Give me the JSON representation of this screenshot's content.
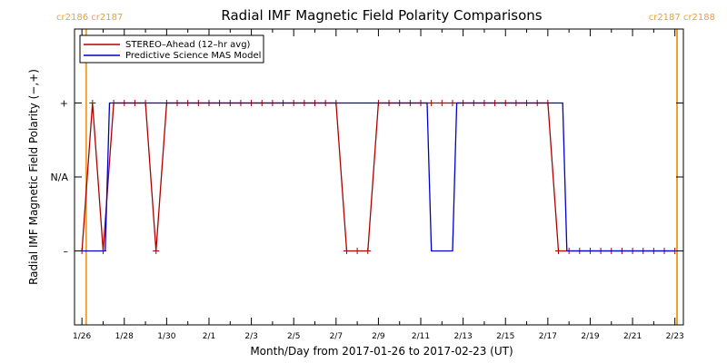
{
  "chart_data": {
    "type": "line",
    "title": "Radial IMF Magnetic Field Polarity Comparisons",
    "xlabel": "Month/Day from 2017-01-26 to 2017-02-23 (UT)",
    "ylabel": "Radial IMF Magnetic Field Polarity (−,+)",
    "xlim": [
      -0.35,
      28.4
    ],
    "ylim": [
      -2,
      2
    ],
    "x_unit": "days after 2017-01-26 00:00 UT",
    "xticks": [
      {
        "x": 0,
        "label": "1/26"
      },
      {
        "x": 2,
        "label": "1/28"
      },
      {
        "x": 4,
        "label": "1/30"
      },
      {
        "x": 6,
        "label": "2/1"
      },
      {
        "x": 8,
        "label": "2/3"
      },
      {
        "x": 10,
        "label": "2/5"
      },
      {
        "x": 12,
        "label": "2/7"
      },
      {
        "x": 14,
        "label": "2/9"
      },
      {
        "x": 16,
        "label": "2/11"
      },
      {
        "x": 18,
        "label": "2/13"
      },
      {
        "x": 20,
        "label": "2/15"
      },
      {
        "x": 22,
        "label": "2/17"
      },
      {
        "x": 24,
        "label": "2/19"
      },
      {
        "x": 26,
        "label": "2/21"
      },
      {
        "x": 28,
        "label": "2/23"
      }
    ],
    "yticks": [
      {
        "y": 1,
        "label": "+"
      },
      {
        "y": 0,
        "label": "N/A"
      },
      {
        "y": -1,
        "label": "–"
      }
    ],
    "series": [
      {
        "name": "STEREO–Ahead (12–hr avg)",
        "color": "#b00000",
        "markers": true,
        "x": [
          0.0,
          0.5,
          1.0,
          1.5,
          2.0,
          2.5,
          3.0,
          3.5,
          4.0,
          4.5,
          5.0,
          5.5,
          6.0,
          6.5,
          7.0,
          7.5,
          8.0,
          8.5,
          9.0,
          9.5,
          10.0,
          10.5,
          11.0,
          11.5,
          12.0,
          12.5,
          13.0,
          13.5,
          14.0,
          14.5,
          15.0,
          15.5,
          16.0,
          16.5,
          17.0,
          17.5,
          18.0,
          18.5,
          19.0,
          19.5,
          20.0,
          20.5,
          21.0,
          21.5,
          22.0,
          22.5,
          23.0,
          23.5,
          24.0,
          24.5,
          25.0,
          25.5,
          26.0,
          26.5,
          27.0,
          27.5,
          28.0
        ],
        "y": [
          -1,
          1,
          -1,
          1,
          1,
          1,
          1,
          -1,
          1,
          1,
          1,
          1,
          1,
          1,
          1,
          1,
          1,
          1,
          1,
          1,
          1,
          1,
          1,
          1,
          1,
          -1,
          -1,
          -1,
          1,
          1,
          1,
          1,
          1,
          1,
          1,
          1,
          1,
          1,
          1,
          1,
          1,
          1,
          1,
          1,
          1,
          -1,
          -1,
          -1,
          -1,
          -1,
          -1,
          -1,
          -1,
          -1,
          -1,
          -1,
          -1
        ]
      },
      {
        "name": "Predictive Science MAS Model",
        "color": "#0000cc",
        "markers": false,
        "x": [
          0.0,
          0.95,
          1.1,
          1.3,
          16.3,
          16.5,
          17.5,
          17.7,
          22.7,
          22.9,
          28.0
        ],
        "y": [
          -1,
          -1,
          -1,
          1,
          1,
          -1,
          -1,
          1,
          1,
          -1,
          -1
        ]
      }
    ],
    "vlines": [
      {
        "x": 0.2,
        "color": "#f0a030",
        "label_left": "cr2186",
        "label_right": "cr2187",
        "position": "top-left"
      },
      {
        "x": 28.1,
        "color": "#f0a030",
        "label_left": "cr2187",
        "label_right": "cr2188",
        "position": "top-right"
      }
    ],
    "legend": {
      "position": "top-left"
    },
    "grid": false
  }
}
